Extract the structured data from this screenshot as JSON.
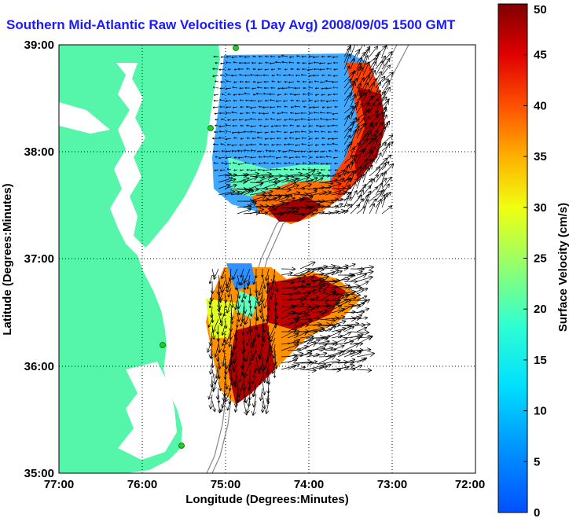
{
  "title": "Southern Mid-Atlantic Raw Velocities (1 Day Avg) 2008/09/05 1500 GMT",
  "map": {
    "x_axis": {
      "label": "Longitude (Degrees:Minutes)",
      "ticks": [
        "77:00",
        "76:00",
        "75:00",
        "74:00",
        "73:00",
        "72:00"
      ],
      "range": [
        -77,
        -72
      ]
    },
    "y_axis": {
      "label": "Latitude (Degrees:Minutes)",
      "ticks": [
        "39:00",
        "38:00",
        "37:00",
        "36:00",
        "35:00"
      ],
      "range": [
        35,
        39
      ]
    },
    "grid": "dotted",
    "land_color": "#55f5aa",
    "bay_color": "#ffffff",
    "contour_color": "#888888",
    "arrow_color": "#000000"
  },
  "colorbar": {
    "label": "Surface Velocity (cm/s)",
    "units": "cm/s",
    "ticks": [
      "0",
      "5",
      "10",
      "15",
      "20",
      "25",
      "30",
      "35",
      "40",
      "45",
      "50"
    ],
    "range": [
      0,
      50
    ],
    "colormap": "jet"
  },
  "markers": {
    "station_color": "#22cc22",
    "count": 5
  }
}
